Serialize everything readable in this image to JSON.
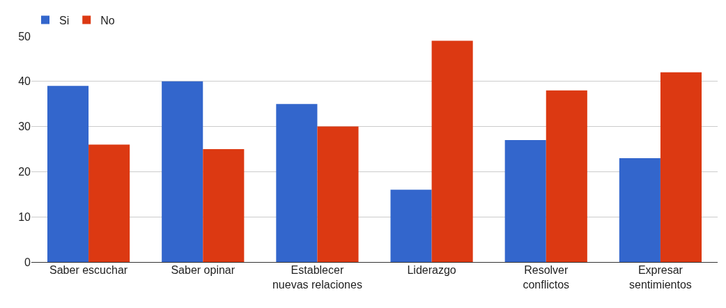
{
  "chart_data": {
    "type": "bar",
    "categories": [
      "Saber escuchar",
      "Saber opinar",
      "Establecer\nnuevas relaciones",
      "Liderazgo",
      "Resolver\nconflictos",
      "Expresar\nsentimientos"
    ],
    "series": [
      {
        "name": "Si",
        "color": "#3366cc",
        "values": [
          39,
          40,
          35,
          16,
          27,
          23
        ]
      },
      {
        "name": "No",
        "color": "#dc3912",
        "values": [
          26,
          25,
          30,
          49,
          38,
          42
        ]
      }
    ],
    "ylim": [
      0,
      50
    ],
    "yticks": [
      0,
      10,
      20,
      30,
      40,
      50
    ],
    "grid": "y",
    "legend": "top left"
  }
}
